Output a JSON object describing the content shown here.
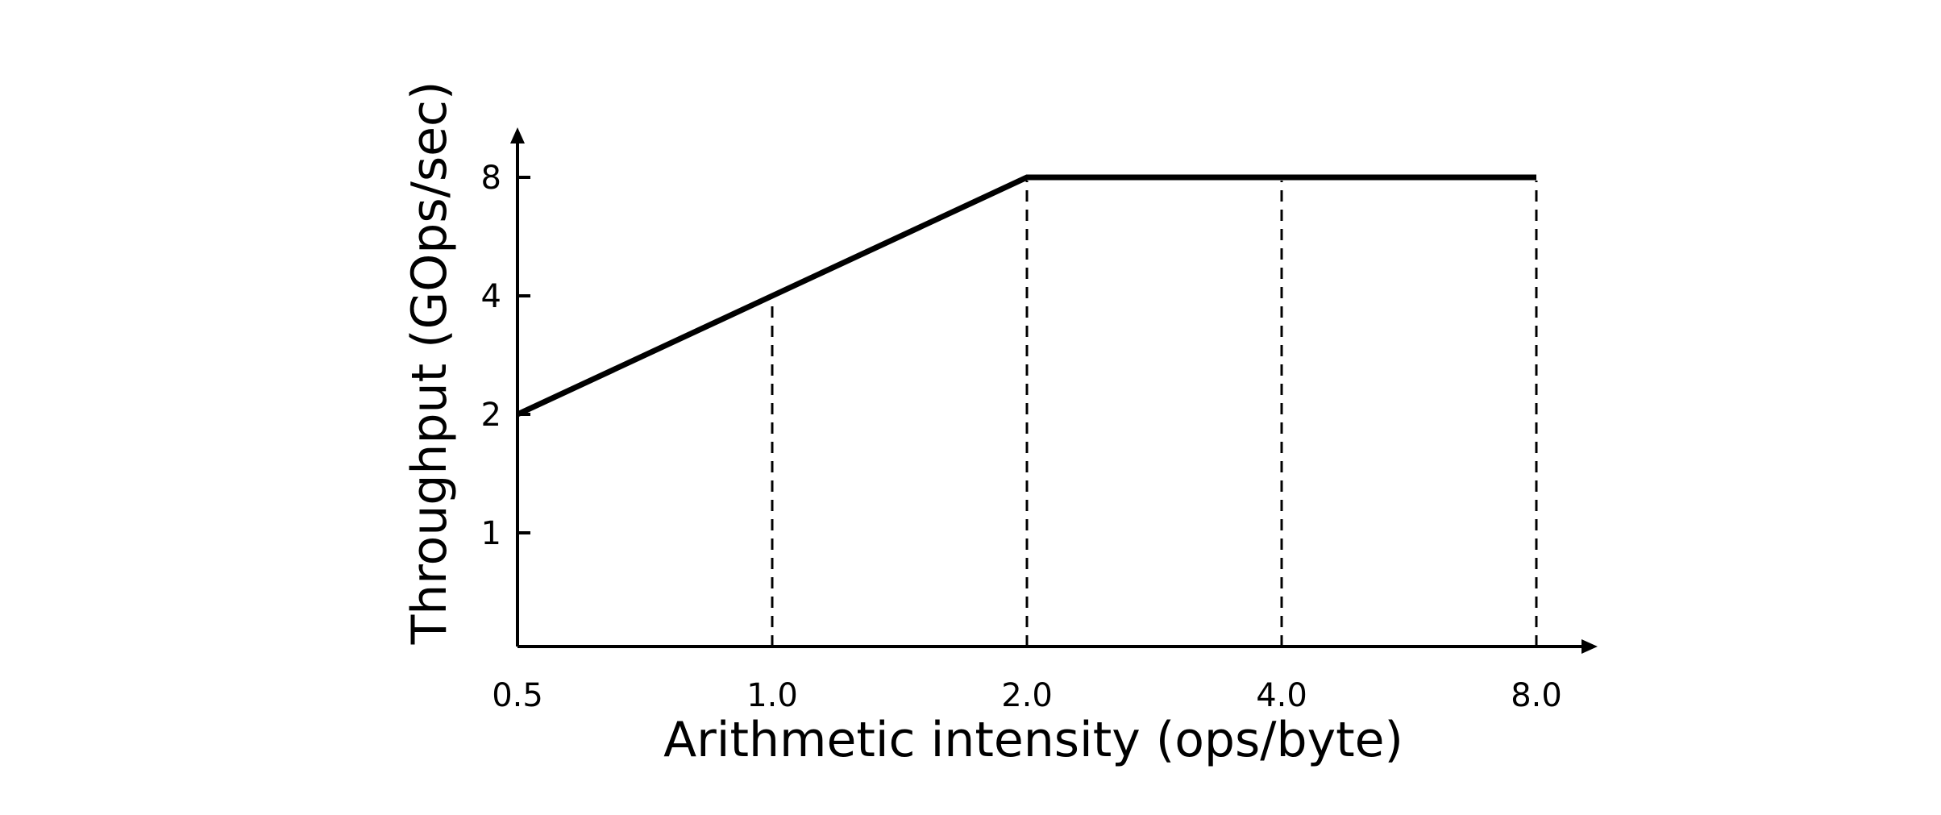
{
  "chart_data": {
    "type": "line",
    "title": "",
    "xlabel": "Arithmetic intensity (ops/byte)",
    "ylabel": "Throughput (GOps/sec)",
    "x_scale": "log2",
    "y_scale": "log2",
    "xlim": [
      0.5,
      11.2
    ],
    "ylim": [
      0.5,
      10.8
    ],
    "x_ticks": [
      0.5,
      1.0,
      2.0,
      4.0,
      8.0
    ],
    "x_tick_labels": [
      "0.5",
      "1.0",
      "2.0",
      "4.0",
      "8.0"
    ],
    "y_ticks": [
      1,
      2,
      4,
      8
    ],
    "y_tick_labels": [
      "1",
      "2",
      "4",
      "8"
    ],
    "vertical_guides": [
      1.0,
      2.0,
      4.0,
      8.0
    ],
    "grid": false,
    "legend": "none",
    "series": [
      {
        "x": [
          0.5,
          1.0,
          2.0,
          4.0,
          8.0
        ],
        "y": [
          2,
          4,
          8,
          8,
          8
        ],
        "color": "#000000"
      }
    ]
  }
}
